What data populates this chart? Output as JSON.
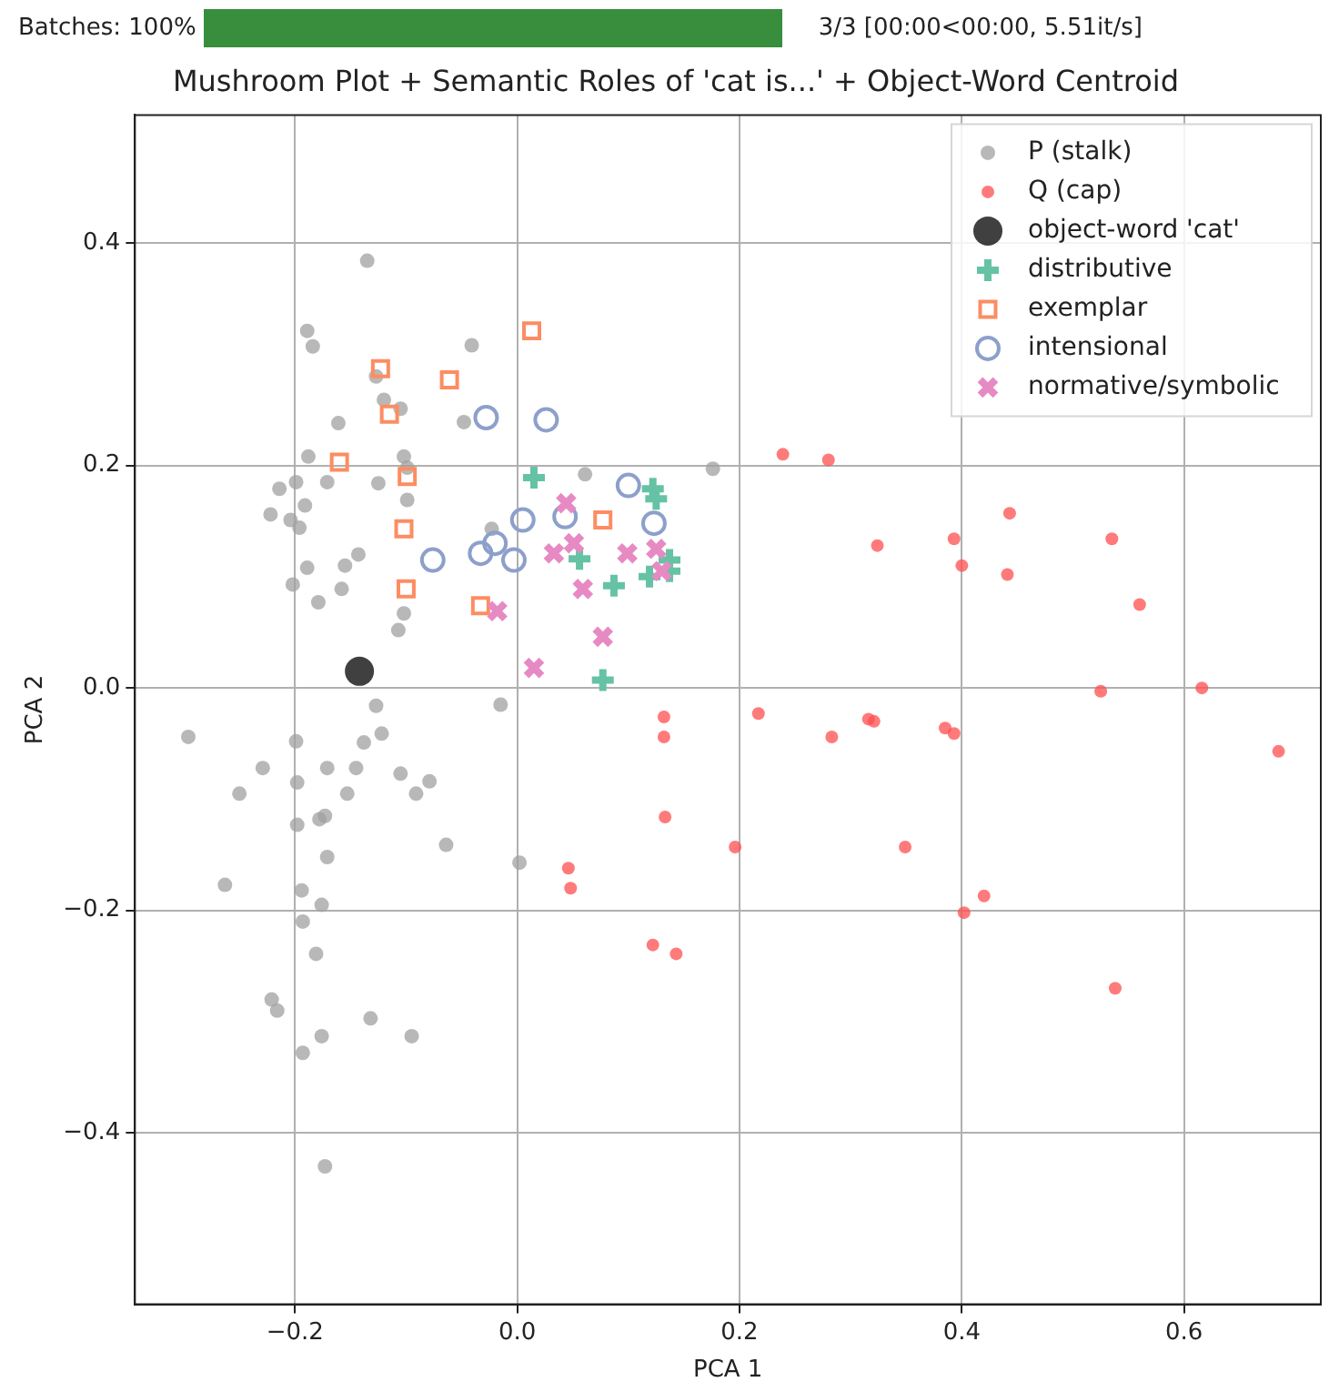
{
  "chart_data": {
    "type": "scatter",
    "title": "Mushroom Plot + Semantic Roles of 'cat is...' + Object-Word Centroid",
    "xlabel": "PCA 1",
    "ylabel": "PCA 2",
    "annotations": [
      "Batches:  100%",
      "3/3  [00:00<00:00,    5.51it/s]"
    ],
    "xlim": [
      -0.344,
      0.723
    ],
    "ylim": [
      -0.554,
      0.515
    ],
    "xticks": [
      {
        "value": -0.2,
        "label": "−0.2"
      },
      "0.0",
      0.2,
      0.4,
      0.6
    ],
    "yticks": [
      {
        "value": -0.4,
        "label": "−0.4"
      },
      {
        "value": -0.2,
        "label": "−0.2"
      },
      {
        "value": 0,
        "label": "0.0"
      },
      0.2,
      0.4
    ],
    "grid": true,
    "legend": "top right",
    "series": [
      {
        "name": "P (stalk)",
        "color": "#a0a0a0",
        "marker": "circle",
        "x": [
          -0.135,
          -0.189,
          -0.184,
          -0.041,
          -0.127,
          -0.12,
          -0.105,
          -0.048,
          -0.161,
          -0.188,
          -0.102,
          -0.099,
          -0.214,
          -0.199,
          -0.171,
          -0.125,
          -0.099,
          -0.191,
          -0.222,
          -0.204,
          -0.196,
          -0.023,
          -0.143,
          -0.155,
          -0.189,
          -0.202,
          -0.158,
          -0.179,
          -0.102,
          -0.107,
          0.061,
          0.176,
          -0.127,
          -0.015,
          -0.296,
          -0.199,
          -0.138,
          -0.122,
          -0.229,
          -0.171,
          -0.145,
          -0.198,
          -0.105,
          -0.079,
          -0.25,
          -0.153,
          -0.091,
          -0.178,
          -0.173,
          -0.198,
          -0.064,
          -0.171,
          0.002,
          -0.263,
          -0.194,
          -0.176,
          -0.193,
          -0.181,
          -0.221,
          -0.216,
          -0.132,
          -0.095,
          -0.176,
          -0.193,
          -0.173
        ],
        "values": [
          0.384,
          0.321,
          0.307,
          0.308,
          0.28,
          0.259,
          0.251,
          0.239,
          0.238,
          0.208,
          0.208,
          0.198,
          0.179,
          0.185,
          0.185,
          0.184,
          0.169,
          0.164,
          0.156,
          0.151,
          0.144,
          0.143,
          0.12,
          0.11,
          0.108,
          0.093,
          0.089,
          0.077,
          0.067,
          0.052,
          0.192,
          0.197,
          -0.016,
          -0.015,
          -0.044,
          -0.048,
          -0.049,
          -0.041,
          -0.072,
          -0.072,
          -0.072,
          -0.085,
          -0.077,
          -0.084,
          -0.095,
          -0.095,
          -0.095,
          -0.118,
          -0.115,
          -0.123,
          -0.141,
          -0.152,
          -0.157,
          -0.177,
          -0.182,
          -0.195,
          -0.21,
          -0.239,
          -0.28,
          -0.29,
          -0.297,
          -0.313,
          -0.313,
          -0.328,
          -0.43
        ]
      },
      {
        "name": "Q (cap)",
        "color": "#ff4d4d",
        "marker": "circle",
        "x": [
          0.239,
          0.28,
          0.324,
          0.393,
          0.4,
          0.443,
          0.441,
          0.535,
          0.56,
          0.525,
          0.616,
          0.685,
          0.132,
          0.132,
          0.217,
          0.316,
          0.321,
          0.283,
          0.385,
          0.393,
          0.133,
          0.196,
          0.349,
          0.046,
          0.048,
          0.42,
          0.402,
          0.122,
          0.143,
          0.538
        ],
        "values": [
          0.21,
          0.205,
          0.128,
          0.134,
          0.11,
          0.157,
          0.102,
          0.134,
          0.075,
          -0.003,
          0,
          -0.057,
          -0.026,
          -0.044,
          -0.023,
          -0.028,
          -0.03,
          -0.044,
          -0.036,
          -0.041,
          -0.116,
          -0.143,
          -0.143,
          -0.162,
          -0.18,
          -0.187,
          -0.202,
          -0.231,
          -0.239,
          -0.27
        ]
      },
      {
        "name": "object-word 'cat'",
        "color": "#000000",
        "marker": "circle",
        "x": [
          -0.142
        ],
        "values": [
          0.015
        ]
      },
      {
        "name": "distributive",
        "color": "#66c2a5",
        "marker": "plus",
        "x": [
          0.015,
          0.122,
          0.125,
          0.056,
          0.087,
          0.119,
          0.137,
          0.137,
          0.077
        ],
        "values": [
          0.189,
          0.179,
          0.17,
          0.116,
          0.092,
          0.1,
          0.115,
          0.105,
          0.007
        ]
      },
      {
        "name": "exemplar",
        "color": "#fc8d62",
        "marker": "square",
        "x": [
          0.013,
          -0.123,
          -0.061,
          -0.115,
          -0.16,
          -0.099,
          -0.102,
          -0.1,
          -0.033,
          0.077
        ],
        "values": [
          0.321,
          0.287,
          0.277,
          0.246,
          0.203,
          0.19,
          0.143,
          0.089,
          0.074,
          0.151
        ]
      },
      {
        "name": "intensional",
        "color": "#8da0cb",
        "marker": "circle",
        "x": [
          -0.028,
          0.026,
          0.1,
          -0.076,
          -0.033,
          -0.02,
          -0.003,
          0.005,
          0.043,
          0.123
        ],
        "values": [
          0.243,
          0.241,
          0.182,
          0.115,
          0.121,
          0.13,
          0.115,
          0.151,
          0.154,
          0.148
        ]
      },
      {
        "name": "normative/symbolic",
        "color": "#e78ac3",
        "marker": "cross",
        "x": [
          0.044,
          0.051,
          0.033,
          0.099,
          0.125,
          0.13,
          0.059,
          0.077,
          0.015,
          -0.018
        ],
        "values": [
          0.166,
          0.13,
          0.121,
          0.121,
          0.125,
          0.105,
          0.089,
          0.046,
          0.018,
          0.069
        ]
      }
    ]
  }
}
